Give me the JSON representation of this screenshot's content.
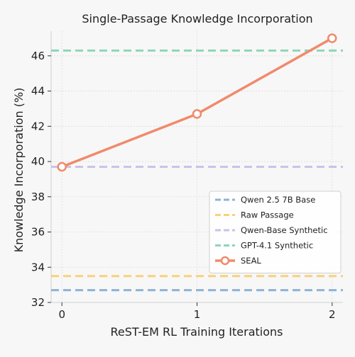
{
  "chart_data": {
    "type": "line",
    "title": "Single-Passage Knowledge Incorporation",
    "xlabel": "ReST-EM RL Training Iterations",
    "ylabel": "Knowledge Incorporation (%)",
    "x": [
      0,
      1,
      2
    ],
    "xlim": [
      -0.08,
      2.08
    ],
    "ylim": [
      32,
      47.4
    ],
    "xticks": [
      0,
      1,
      2
    ],
    "yticks": [
      32,
      34,
      36,
      38,
      40,
      42,
      44,
      46
    ],
    "grid": true,
    "legend_position": "lower-right",
    "series": [
      {
        "name": "Qwen 2.5 7B Base",
        "kind": "hline",
        "value": 32.7,
        "color": "#8db4d4",
        "dashed": true
      },
      {
        "name": "Raw Passage",
        "kind": "hline",
        "value": 33.5,
        "color": "#f7d27a",
        "dashed": true
      },
      {
        "name": "Qwen-Base Synthetic",
        "kind": "hline",
        "value": 39.7,
        "color": "#c9c2e8",
        "dashed": true
      },
      {
        "name": "GPT-4.1 Synthetic",
        "kind": "hline",
        "value": 46.3,
        "color": "#8fd6b7",
        "dashed": true
      },
      {
        "name": "SEAL",
        "kind": "line",
        "values": [
          39.7,
          42.7,
          47.0
        ],
        "color": "#f08a6c",
        "markers": true
      }
    ]
  }
}
